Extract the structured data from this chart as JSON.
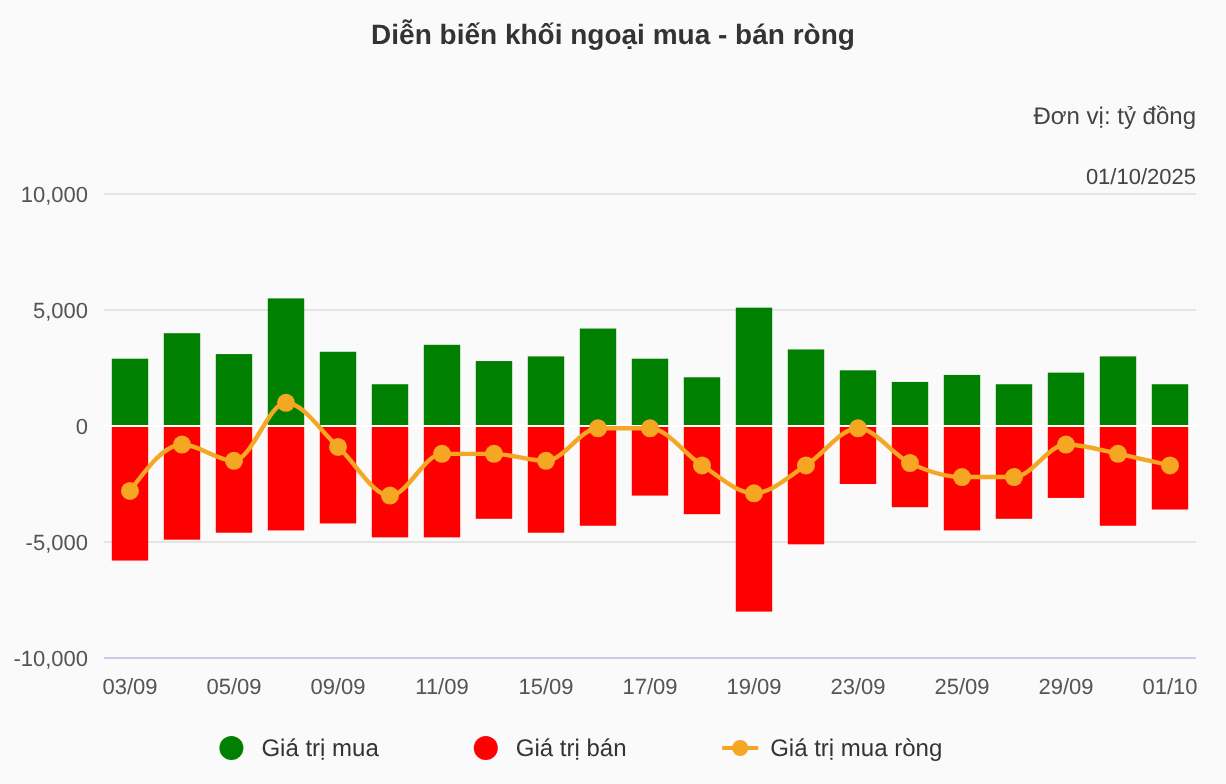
{
  "chart_data": {
    "type": "bar",
    "title": "Diễn biến khối ngoại mua - bán ròng",
    "annotations": [
      "Đơn vị: tỷ đồng",
      "01/10/2025"
    ],
    "categories": [
      "03/09",
      null,
      "05/09",
      null,
      "09/09",
      null,
      "11/09",
      null,
      "15/09",
      null,
      "17/09",
      null,
      "19/09",
      null,
      "23/09",
      null,
      "25/09",
      null,
      "29/09",
      null,
      "01/10"
    ],
    "series": [
      {
        "name": "Giá trị mua",
        "color": "#008000",
        "values": [
          2900,
          4000,
          3100,
          5500,
          3200,
          1800,
          3500,
          2800,
          3000,
          4200,
          2900,
          2100,
          5100,
          3300,
          2400,
          1900,
          2200,
          1800,
          2300,
          3000,
          1800
        ]
      },
      {
        "name": "Giá trị bán",
        "color": "#ff0000",
        "values": [
          -5800,
          -4900,
          -4600,
          -4500,
          -4200,
          -4800,
          -4800,
          -4000,
          -4600,
          -4300,
          -3000,
          -3800,
          -8000,
          -5100,
          -2500,
          -3500,
          -4500,
          -4000,
          -3100,
          -4300,
          -3600
        ]
      },
      {
        "name": "Giá trị mua ròng",
        "type": "line",
        "color": "#f5a623",
        "marker": "circle",
        "values": [
          -2800,
          -800,
          -1500,
          1000,
          -900,
          -3000,
          -1200,
          -1200,
          -1500,
          -100,
          -100,
          -1700,
          -2900,
          -1700,
          -100,
          -1600,
          -2200,
          -2200,
          -800,
          -1200,
          -1700
        ]
      }
    ],
    "stacked": true,
    "ylim": [
      -10000,
      10000
    ],
    "yticks": [
      {
        "value": -10000,
        "label": "-10,000"
      },
      {
        "value": -5000,
        "label": "-5,000"
      },
      0,
      {
        "value": 5000,
        "label": "5,000"
      },
      {
        "value": 10000,
        "label": "10,000"
      }
    ],
    "grid": "y",
    "legend": "bottom"
  }
}
